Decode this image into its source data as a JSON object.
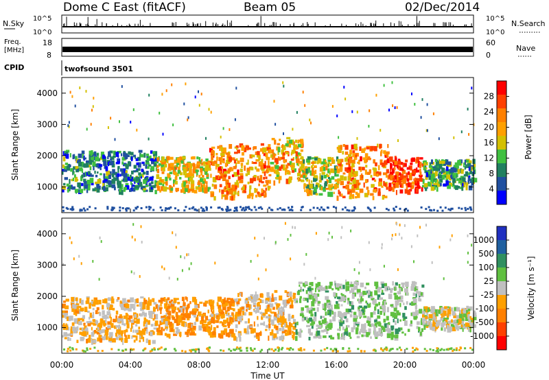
{
  "header": {
    "station": "Dome C East (fitACF)",
    "beam": "Beam 05",
    "date": "02/Dec/2014"
  },
  "strips": {
    "nsky_label": "N.Sky",
    "nsky_ticks": [
      "10^5",
      "10^0"
    ],
    "nsearch_label": "N.Search",
    "nsearch_ticks": [
      "10^5",
      "10^0"
    ],
    "freq_label_line1": "Freq.",
    "freq_label_line2": "[MHz]",
    "freq_ticks": [
      "18",
      "8"
    ],
    "nave_label": "Nave",
    "nave_ticks": [
      "60",
      "0"
    ],
    "cpid_label": "CPID",
    "cpid_value": "twofsound 3501"
  },
  "power_panel": {
    "ylabel": "Slant Range [km]",
    "yticks": [
      "4000",
      "3000",
      "2000",
      "1000"
    ],
    "colorbar_label": "Power [dB]",
    "colorbar_ticks": [
      "28",
      "24",
      "20",
      "16",
      "12",
      "8",
      "4"
    ],
    "colorbar_colors": [
      "#ff0000",
      "#ff4000",
      "#ff8000",
      "#ffa000",
      "#d4c000",
      "#40c040",
      "#208060",
      "#2050a0",
      "#0000ff"
    ]
  },
  "velocity_panel": {
    "ylabel": "Slant Range [km]",
    "yticks": [
      "4000",
      "3000",
      "2000",
      "1000"
    ],
    "colorbar_label": "Velocity [m s⁻¹]",
    "colorbar_ticks": [
      "1000",
      "500",
      "100",
      "25",
      "-25",
      "-100",
      "-500",
      "-1000"
    ],
    "colorbar_colors": [
      "#2030c0",
      "#2060a0",
      "#309060",
      "#60c040",
      "#c0c0c0",
      "#ffa000",
      "#ff8000",
      "#ff4000",
      "#ff0000"
    ]
  },
  "xaxis": {
    "label": "Time UT",
    "ticks": [
      "00:00",
      "04:00",
      "08:00",
      "12:00",
      "16:00",
      "20:00",
      "00:00"
    ]
  },
  "chart_data": [
    {
      "type": "heatmap",
      "title": "",
      "xlabel": "",
      "ylabel": "Slant Range [km]",
      "xlim": [
        "00:00",
        "24:00"
      ],
      "ylim": [
        180,
        4500
      ],
      "colorbar": {
        "label": "Power [dB]",
        "range": [
          0,
          32
        ]
      },
      "bands": [
        {
          "t0": 0.0,
          "t1": 5.5,
          "r0": 900,
          "r1": 2200,
          "value": 8
        },
        {
          "t0": 5.5,
          "t1": 8.5,
          "r0": 900,
          "r1": 2000,
          "value": 18
        },
        {
          "t0": 8.5,
          "t1": 12.0,
          "r0": 700,
          "r1": 2400,
          "value": 22
        },
        {
          "t0": 12.0,
          "t1": 14.0,
          "r0": 1200,
          "r1": 2600,
          "value": 20
        },
        {
          "t0": 14.0,
          "t1": 16.0,
          "r0": 800,
          "r1": 2000,
          "value": 16
        },
        {
          "t0": 16.0,
          "t1": 19.0,
          "r0": 700,
          "r1": 2400,
          "value": 22
        },
        {
          "t0": 19.0,
          "t1": 21.0,
          "r0": 900,
          "r1": 2000,
          "value": 28
        },
        {
          "t0": 21.0,
          "t1": 24.0,
          "r0": 1000,
          "r1": 1900,
          "value": 10
        }
      ]
    },
    {
      "type": "heatmap",
      "title": "",
      "xlabel": "Time UT",
      "ylabel": "Slant Range [km]",
      "xlim": [
        "00:00",
        "24:00"
      ],
      "ylim": [
        180,
        4500
      ],
      "colorbar": {
        "label": "Velocity [m s⁻¹]",
        "range": [
          -1000,
          1000
        ]
      },
      "bands": [
        {
          "t0": 0.0,
          "t1": 5.5,
          "r0": 600,
          "r1": 2000,
          "value": -150
        },
        {
          "t0": 5.5,
          "t1": 10.0,
          "r0": 800,
          "r1": 2000,
          "value": -300
        },
        {
          "t0": 10.0,
          "t1": 13.5,
          "r0": 700,
          "r1": 2200,
          "value": -150
        },
        {
          "t0": 13.5,
          "t1": 21.0,
          "r0": 700,
          "r1": 2500,
          "value": 150
        },
        {
          "t0": 21.0,
          "t1": 24.0,
          "r0": 1000,
          "r1": 1700,
          "value": 0
        }
      ]
    }
  ]
}
